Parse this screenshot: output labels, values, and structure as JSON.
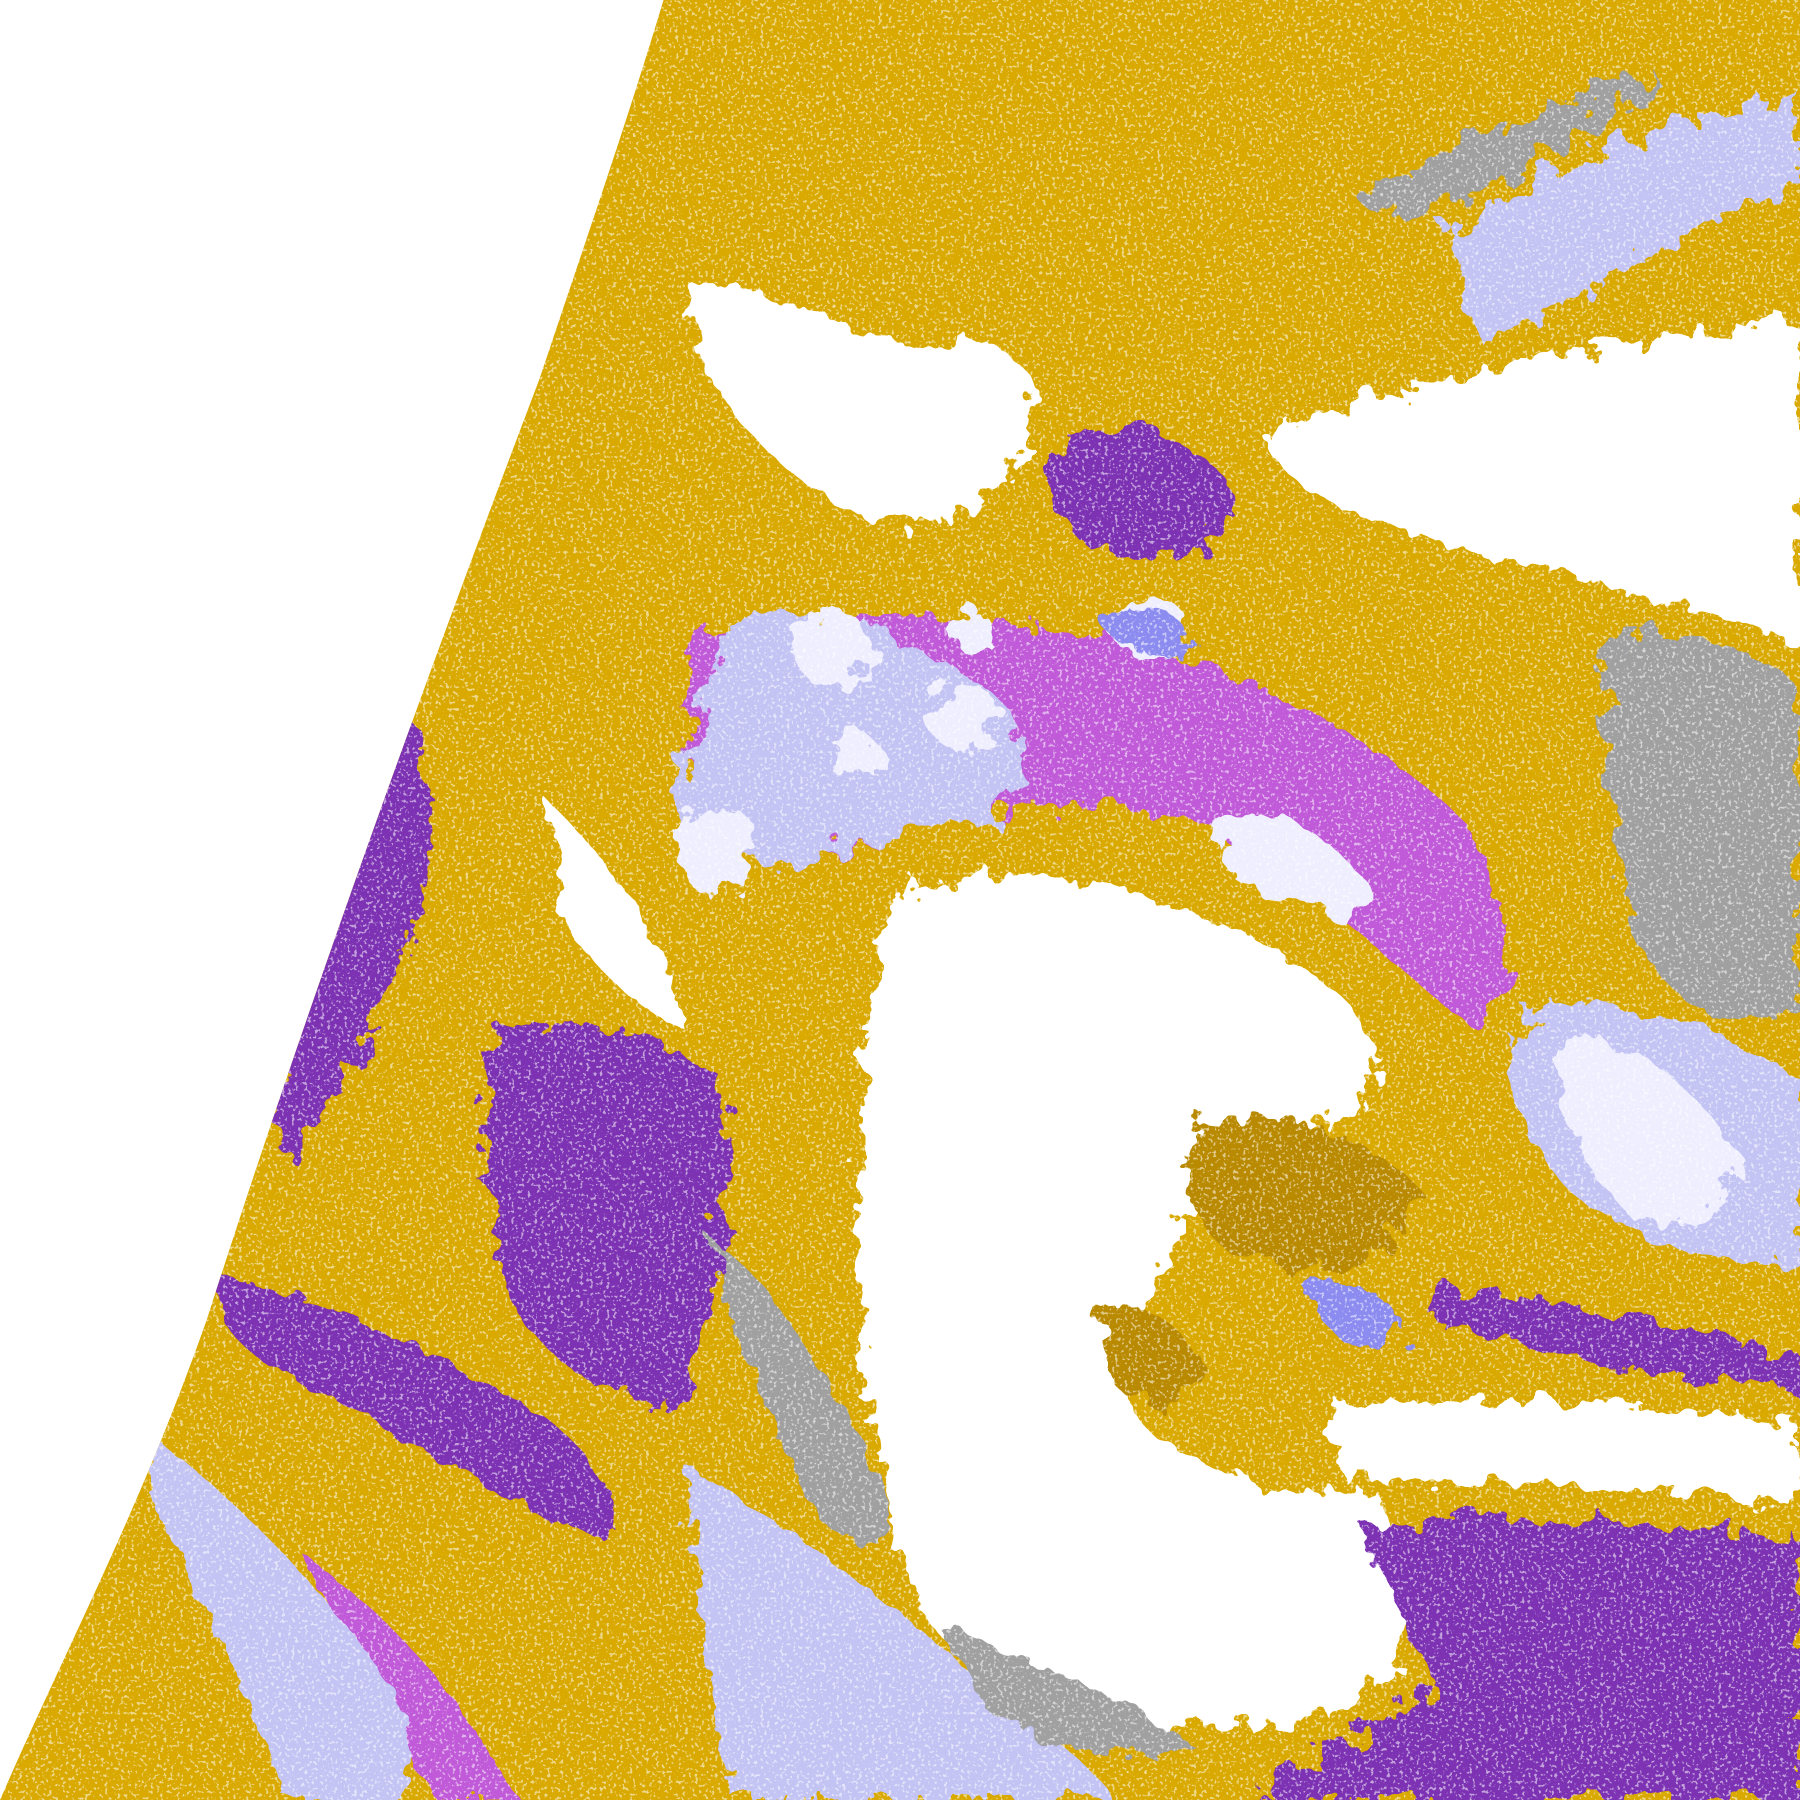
{
  "image": {
    "kind": "false-color satellite cloud classification",
    "palette": {
      "background": "#ffffff",
      "gold": "#d9a900",
      "dark_gold": "#b98a00",
      "purple": "#7b33b3",
      "magenta": "#c05ad8",
      "lavender": "#c4c4f4",
      "pale_lavender": "#eeeeff",
      "periwinkle": "#8c8cf0",
      "gray": "#a0a0a0",
      "white": "#ffffff"
    }
  }
}
